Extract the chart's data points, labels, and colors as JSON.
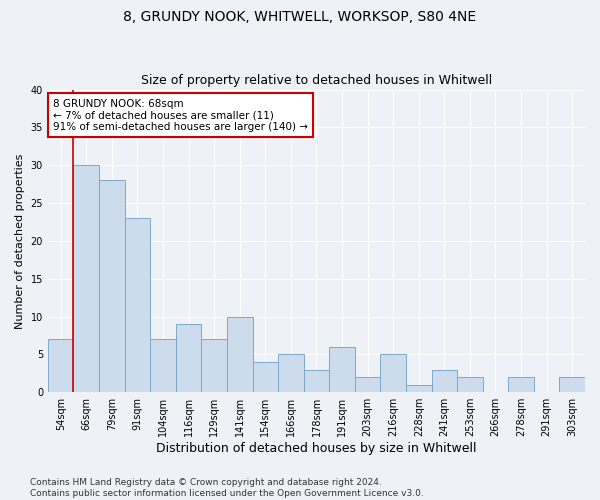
{
  "title1": "8, GRUNDY NOOK, WHITWELL, WORKSOP, S80 4NE",
  "title2": "Size of property relative to detached houses in Whitwell",
  "xlabel": "Distribution of detached houses by size in Whitwell",
  "ylabel": "Number of detached properties",
  "categories": [
    "54sqm",
    "66sqm",
    "79sqm",
    "91sqm",
    "104sqm",
    "116sqm",
    "129sqm",
    "141sqm",
    "154sqm",
    "166sqm",
    "178sqm",
    "191sqm",
    "203sqm",
    "216sqm",
    "228sqm",
    "241sqm",
    "253sqm",
    "266sqm",
    "278sqm",
    "291sqm",
    "303sqm"
  ],
  "values": [
    7,
    30,
    28,
    23,
    7,
    9,
    7,
    10,
    4,
    5,
    3,
    6,
    2,
    5,
    1,
    3,
    2,
    0,
    2,
    0,
    2
  ],
  "bar_color": "#ccdcec",
  "bar_edge_color": "#7aaac8",
  "annotation_text": "8 GRUNDY NOOK: 68sqm\n← 7% of detached houses are smaller (11)\n91% of semi-detached houses are larger (140) →",
  "annotation_box_color": "white",
  "annotation_box_edge_color": "#cc0000",
  "vline_color": "#cc0000",
  "vline_x": 0.5,
  "ylim": [
    0,
    40
  ],
  "yticks": [
    0,
    5,
    10,
    15,
    20,
    25,
    30,
    35,
    40
  ],
  "footer": "Contains HM Land Registry data © Crown copyright and database right 2024.\nContains public sector information licensed under the Open Government Licence v3.0.",
  "bg_color": "#eef2f7",
  "grid_color": "#ffffff",
  "title1_fontsize": 10,
  "title2_fontsize": 9,
  "xlabel_fontsize": 9,
  "ylabel_fontsize": 8,
  "tick_fontsize": 7,
  "annotation_fontsize": 7.5,
  "footer_fontsize": 6.5
}
